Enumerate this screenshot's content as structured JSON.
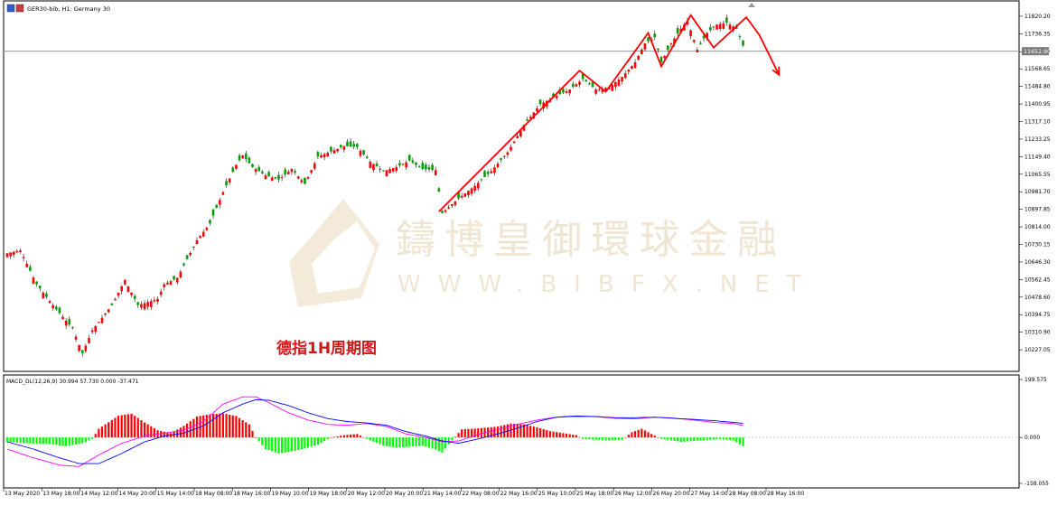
{
  "header": {
    "symbol_label": "GER30-bib, H1:  Germany 30",
    "icon": "chart-window-icon"
  },
  "annotation": {
    "label": "德指1H周期图",
    "color": "#d01818"
  },
  "watermark": {
    "title": "鑄博皇御環球金融",
    "subtitle": "WWW.BIBFX.NET",
    "color": "#efe3cf"
  },
  "price_axis": {
    "ticks": [
      "11820.20",
      "11736.35",
      "11650.50",
      "11568.65",
      "11484.80",
      "11400.95",
      "11317.10",
      "11233.25",
      "11149.40",
      "11065.55",
      "10981.70",
      "10897.85",
      "10814.00",
      "10730.15",
      "10646.30",
      "10562.45",
      "10478.60",
      "10394.75",
      "10310.90",
      "10227.05"
    ],
    "current_price": "11652.90",
    "current_price_value": 11652.9
  },
  "macd_axis": {
    "ticks": [
      "199.575",
      "0.000",
      "-158.055"
    ]
  },
  "time_axis": {
    "labels": [
      "13 May 2020",
      "13 May 18:00",
      "14 May 12:00",
      "14 May 20:00",
      "15 May 14:00",
      "18 May 08:00",
      "18 May 16:00",
      "19 May 10:00",
      "19 May 18:00",
      "20 May 12:00",
      "20 May 20:00",
      "21 May 14:00",
      "22 May 08:00",
      "22 May 16:00",
      "25 May 10:00",
      "25 May 18:00",
      "26 May 12:00",
      "26 May 20:00",
      "27 May 14:00",
      "28 May 08:00",
      "28 May 16:00"
    ]
  },
  "colors": {
    "bull": "#ff0000",
    "bear": "#00a000",
    "macd_pos": "#ff0000",
    "macd_neg": "#00ff00",
    "signal": "#ff00ff",
    "macd_line": "#0000ff",
    "trend": "#ff0000"
  },
  "chart_data": [
    {
      "type": "candlestick",
      "title": "GER30-bib, H1:  Germany 30",
      "ylim": [
        10180,
        11850
      ],
      "anchors": [
        [
          0,
          10688
        ],
        [
          4,
          10702
        ],
        [
          9,
          10540
        ],
        [
          15,
          10420
        ],
        [
          20,
          10330
        ],
        [
          23,
          10210
        ],
        [
          26,
          10320
        ],
        [
          32,
          10440
        ],
        [
          36,
          10560
        ],
        [
          40,
          10440
        ],
        [
          46,
          10470
        ],
        [
          48,
          10540
        ],
        [
          52,
          10570
        ],
        [
          58,
          10750
        ],
        [
          62,
          10830
        ],
        [
          66,
          10980
        ],
        [
          70,
          11110
        ],
        [
          72,
          11155
        ],
        [
          75,
          11100
        ],
        [
          79,
          11060
        ],
        [
          83,
          11040
        ],
        [
          87,
          11090
        ],
        [
          91,
          11020
        ],
        [
          95,
          11150
        ],
        [
          100,
          11180
        ],
        [
          103,
          11200
        ],
        [
          107,
          11195
        ],
        [
          111,
          11125
        ],
        [
          115,
          11080
        ],
        [
          119,
          11100
        ],
        [
          123,
          11130
        ],
        [
          127,
          11090
        ],
        [
          131,
          11085
        ],
        [
          133,
          10880
        ],
        [
          138,
          10950
        ],
        [
          143,
          11010
        ],
        [
          148,
          11080
        ],
        [
          153,
          11170
        ],
        [
          158,
          11300
        ],
        [
          163,
          11400
        ],
        [
          168,
          11440
        ],
        [
          172,
          11470
        ],
        [
          176,
          11520
        ],
        [
          180,
          11470
        ],
        [
          184,
          11480
        ],
        [
          188,
          11530
        ],
        [
          192,
          11600
        ],
        [
          195,
          11690
        ],
        [
          198,
          11720
        ],
        [
          200,
          11600
        ],
        [
          203,
          11690
        ],
        [
          206,
          11760
        ],
        [
          208,
          11800
        ],
        [
          211,
          11660
        ],
        [
          214,
          11740
        ],
        [
          217,
          11780
        ],
        [
          220,
          11790
        ],
        [
          223,
          11760
        ],
        [
          225,
          11680
        ]
      ],
      "trend_lines": [
        [
          [
            132,
            10887
          ],
          [
            175,
            11560
          ],
          [
            183,
            11460
          ],
          [
            196,
            11740
          ],
          [
            200,
            11580
          ],
          [
            209,
            11825
          ],
          [
            216,
            11670
          ],
          [
            226,
            11815
          ],
          [
            230,
            11730
          ],
          [
            236,
            11540
          ]
        ]
      ]
    },
    {
      "type": "bar",
      "title": "MACD_DL(12,26,9) 30.994 57.730 0.000 -37.471",
      "ylim": [
        -158.055,
        199.575
      ],
      "hist_anchors": [
        [
          0,
          -15
        ],
        [
          6,
          -20
        ],
        [
          12,
          -22
        ],
        [
          18,
          -30
        ],
        [
          23,
          -20
        ],
        [
          26,
          -5
        ],
        [
          28,
          30
        ],
        [
          34,
          75
        ],
        [
          38,
          82
        ],
        [
          42,
          52
        ],
        [
          46,
          25
        ],
        [
          50,
          15
        ],
        [
          54,
          40
        ],
        [
          58,
          72
        ],
        [
          62,
          80
        ],
        [
          66,
          83
        ],
        [
          70,
          74
        ],
        [
          74,
          45
        ],
        [
          76,
          0
        ],
        [
          79,
          -40
        ],
        [
          83,
          -55
        ],
        [
          87,
          -48
        ],
        [
          91,
          -38
        ],
        [
          95,
          -25
        ],
        [
          99,
          0
        ],
        [
          103,
          8
        ],
        [
          107,
          12
        ],
        [
          111,
          -10
        ],
        [
          115,
          -28
        ],
        [
          119,
          -35
        ],
        [
          123,
          -32
        ],
        [
          127,
          -28
        ],
        [
          131,
          -42
        ],
        [
          133,
          -52
        ],
        [
          136,
          -10
        ],
        [
          139,
          28
        ],
        [
          145,
          32
        ],
        [
          150,
          38
        ],
        [
          154,
          48
        ],
        [
          158,
          45
        ],
        [
          162,
          35
        ],
        [
          166,
          22
        ],
        [
          170,
          15
        ],
        [
          174,
          8
        ],
        [
          176,
          -5
        ],
        [
          180,
          -8
        ],
        [
          184,
          -10
        ],
        [
          188,
          -8
        ],
        [
          191,
          18
        ],
        [
          194,
          30
        ],
        [
          197,
          12
        ],
        [
          200,
          -5
        ],
        [
          206,
          -15
        ],
        [
          212,
          -10
        ],
        [
          218,
          -6
        ],
        [
          222,
          -10
        ],
        [
          225,
          -30
        ]
      ],
      "signal_anchors": [
        [
          0,
          -40
        ],
        [
          8,
          -70
        ],
        [
          16,
          -95
        ],
        [
          22,
          -100
        ],
        [
          28,
          -60
        ],
        [
          35,
          -20
        ],
        [
          42,
          5
        ],
        [
          48,
          15
        ],
        [
          54,
          25
        ],
        [
          60,
          55
        ],
        [
          66,
          115
        ],
        [
          72,
          140
        ],
        [
          76,
          140
        ],
        [
          80,
          120
        ],
        [
          86,
          85
        ],
        [
          92,
          60
        ],
        [
          98,
          45
        ],
        [
          104,
          42
        ],
        [
          110,
          48
        ],
        [
          116,
          38
        ],
        [
          122,
          12
        ],
        [
          128,
          0
        ],
        [
          133,
          -15
        ],
        [
          138,
          -12
        ],
        [
          144,
          10
        ],
        [
          150,
          28
        ],
        [
          156,
          45
        ],
        [
          162,
          60
        ],
        [
          168,
          70
        ],
        [
          174,
          72
        ],
        [
          180,
          72
        ],
        [
          186,
          66
        ],
        [
          192,
          64
        ],
        [
          198,
          70
        ],
        [
          204,
          66
        ],
        [
          210,
          60
        ],
        [
          216,
          52
        ],
        [
          222,
          48
        ],
        [
          225,
          42
        ]
      ],
      "macd_anchors": [
        [
          0,
          -15
        ],
        [
          8,
          -40
        ],
        [
          16,
          -70
        ],
        [
          22,
          -90
        ],
        [
          28,
          -90
        ],
        [
          35,
          -55
        ],
        [
          42,
          -15
        ],
        [
          48,
          5
        ],
        [
          54,
          15
        ],
        [
          60,
          40
        ],
        [
          66,
          85
        ],
        [
          72,
          115
        ],
        [
          76,
          130
        ],
        [
          80,
          128
        ],
        [
          86,
          110
        ],
        [
          92,
          85
        ],
        [
          98,
          65
        ],
        [
          104,
          55
        ],
        [
          110,
          50
        ],
        [
          116,
          42
        ],
        [
          122,
          20
        ],
        [
          128,
          5
        ],
        [
          133,
          -12
        ],
        [
          138,
          -20
        ],
        [
          144,
          -5
        ],
        [
          150,
          12
        ],
        [
          156,
          32
        ],
        [
          162,
          55
        ],
        [
          168,
          70
        ],
        [
          174,
          74
        ],
        [
          180,
          72
        ],
        [
          186,
          68
        ],
        [
          192,
          68
        ],
        [
          198,
          70
        ],
        [
          204,
          66
        ],
        [
          210,
          62
        ],
        [
          216,
          58
        ],
        [
          222,
          52
        ],
        [
          225,
          49
        ]
      ]
    }
  ]
}
